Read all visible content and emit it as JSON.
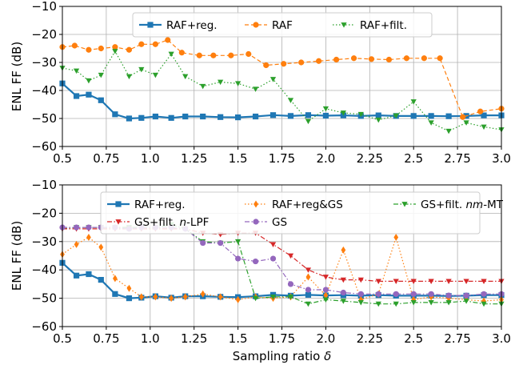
{
  "chart_data": [
    {
      "type": "line",
      "title": "",
      "xlabel": "",
      "ylabel": "ENL FF (dB)",
      "xlim": [
        0.5,
        3.0
      ],
      "ylim": [
        -60,
        -10
      ],
      "xticks": [
        "0.5",
        "0.75",
        "1.0",
        "1.25",
        "1.5",
        "1.75",
        "2.0",
        "2.25",
        "2.5",
        "2.75",
        "3.0"
      ],
      "xtick_values": [
        0.5,
        0.75,
        1.0,
        1.25,
        1.5,
        1.75,
        2.0,
        2.25,
        2.5,
        2.75,
        3.0
      ],
      "yticks": [
        "−60",
        "−50",
        "−40",
        "−30",
        "−20",
        "−10"
      ],
      "ytick_values": [
        -60,
        -50,
        -40,
        -30,
        -20,
        -10
      ],
      "grid": true,
      "legend_placement": "top-center",
      "legend_columns": 3,
      "series": [
        {
          "name": "RAF+reg.",
          "color": "#1f77b4",
          "style": "solid",
          "marker": "square",
          "x": [
            0.5,
            0.58,
            0.65,
            0.72,
            0.8,
            0.88,
            0.95,
            1.03,
            1.12,
            1.2,
            1.3,
            1.4,
            1.5,
            1.6,
            1.7,
            1.8,
            1.9,
            2.0,
            2.1,
            2.2,
            2.3,
            2.4,
            2.5,
            2.6,
            2.7,
            2.8,
            2.9,
            3.0
          ],
          "y": [
            -37.5,
            -42,
            -41.5,
            -43.5,
            -48.5,
            -50,
            -49.8,
            -49.3,
            -49.8,
            -49.3,
            -49.3,
            -49.5,
            -49.6,
            -49.3,
            -48.8,
            -49.1,
            -48.8,
            -49,
            -48.9,
            -49.1,
            -48.9,
            -49.1,
            -49.1,
            -49.1,
            -49.2,
            -49.1,
            -48.9,
            -48.9
          ]
        },
        {
          "name": "RAF",
          "color": "#ff7f0e",
          "style": "dashed",
          "marker": "circle",
          "x": [
            0.5,
            0.57,
            0.65,
            0.72,
            0.8,
            0.88,
            0.95,
            1.03,
            1.1,
            1.18,
            1.28,
            1.36,
            1.46,
            1.56,
            1.66,
            1.76,
            1.86,
            1.96,
            2.06,
            2.16,
            2.26,
            2.36,
            2.46,
            2.56,
            2.65,
            2.78,
            2.88,
            3.0
          ],
          "y": [
            -24.5,
            -24,
            -25.5,
            -25,
            -24.5,
            -25.5,
            -23.5,
            -23.5,
            -22,
            -26.5,
            -27.5,
            -27.5,
            -27.5,
            -27,
            -31,
            -30.5,
            -30,
            -29.5,
            -29,
            -28.5,
            -28.8,
            -29,
            -28.5,
            -28.5,
            -28.5,
            -49.5,
            -47.5,
            -46.5
          ]
        },
        {
          "name": "RAF+filt.",
          "color": "#2ca02c",
          "style": "dotted",
          "marker": "triangle-down",
          "x": [
            0.5,
            0.58,
            0.65,
            0.72,
            0.8,
            0.88,
            0.95,
            1.03,
            1.12,
            1.2,
            1.3,
            1.4,
            1.5,
            1.6,
            1.7,
            1.8,
            1.9,
            2.0,
            2.1,
            2.2,
            2.3,
            2.4,
            2.5,
            2.6,
            2.7,
            2.8,
            2.9,
            3.0
          ],
          "y": [
            -32,
            -33,
            -36.5,
            -34.5,
            -26,
            -35,
            -32.5,
            -34.5,
            -27,
            -35,
            -38.5,
            -37,
            -37.5,
            -39.5,
            -36,
            -43.5,
            -51,
            -46.5,
            -48,
            -48.5,
            -50.5,
            -49,
            -44,
            -51.5,
            -54.5,
            -51.5,
            -53,
            -54
          ]
        }
      ]
    },
    {
      "type": "line",
      "title": "",
      "xlabel": "Sampling ratio δ",
      "ylabel": "ENL FF (dB)",
      "xlim": [
        0.5,
        3.0
      ],
      "ylim": [
        -60,
        -10
      ],
      "xticks": [
        "0.5",
        "0.75",
        "1.0",
        "1.25",
        "1.5",
        "1.75",
        "2.0",
        "2.25",
        "2.5",
        "2.75",
        "3.0"
      ],
      "xtick_values": [
        0.5,
        0.75,
        1.0,
        1.25,
        1.5,
        1.75,
        2.0,
        2.25,
        2.5,
        2.75,
        3.0
      ],
      "yticks": [
        "−60",
        "−50",
        "−40",
        "−30",
        "−20",
        "−10"
      ],
      "ytick_values": [
        -60,
        -50,
        -40,
        -30,
        -20,
        -10
      ],
      "grid": true,
      "legend_placement": "top-center",
      "legend_columns": 3,
      "series": [
        {
          "name": "RAF+reg.",
          "color": "#1f77b4",
          "style": "solid",
          "marker": "square",
          "x": [
            0.5,
            0.58,
            0.65,
            0.72,
            0.8,
            0.88,
            0.95,
            1.03,
            1.12,
            1.2,
            1.3,
            1.4,
            1.5,
            1.6,
            1.7,
            1.8,
            1.9,
            2.0,
            2.1,
            2.2,
            2.3,
            2.4,
            2.5,
            2.6,
            2.7,
            2.8,
            2.9,
            3.0
          ],
          "y": [
            -37.5,
            -42,
            -41.5,
            -43.5,
            -48.5,
            -50,
            -49.8,
            -49.3,
            -49.8,
            -49.3,
            -49.3,
            -49.5,
            -49.6,
            -49.3,
            -48.8,
            -49.1,
            -48.8,
            -49,
            -48.9,
            -49.1,
            -48.9,
            -49.1,
            -49.1,
            -49.1,
            -49.2,
            -49.1,
            -48.9,
            -48.9
          ]
        },
        {
          "name": "RAF+reg&GS",
          "color": "#ff7f0e",
          "style": "dotted",
          "marker": "diamond",
          "x": [
            0.5,
            0.58,
            0.65,
            0.72,
            0.8,
            0.88,
            0.95,
            1.03,
            1.12,
            1.2,
            1.3,
            1.4,
            1.5,
            1.6,
            1.7,
            1.8,
            1.9,
            2.0,
            2.1,
            2.2,
            2.3,
            2.4,
            2.5,
            2.6,
            2.7,
            2.8,
            2.9,
            3.0
          ],
          "y": [
            -34.5,
            -31,
            -28.5,
            -32,
            -43,
            -46.5,
            -49.5,
            -49.5,
            -50,
            -49.5,
            -48.5,
            -49.5,
            -50.5,
            -49.5,
            -50,
            -49.5,
            -42.5,
            -49,
            -33,
            -50.5,
            -48.5,
            -28.5,
            -50.5,
            -49.5,
            -50,
            -50.5,
            -51,
            -50.5
          ]
        },
        {
          "name": "GS+filt. nm-MT",
          "color": "#2ca02c",
          "style": "dashdot",
          "marker": "triangle-down",
          "x": [
            0.5,
            0.58,
            0.65,
            0.72,
            0.8,
            0.88,
            0.95,
            1.03,
            1.12,
            1.2,
            1.3,
            1.4,
            1.5,
            1.6,
            1.7,
            1.8,
            1.9,
            2.0,
            2.1,
            2.2,
            2.3,
            2.4,
            2.5,
            2.6,
            2.7,
            2.8,
            2.9,
            3.0
          ],
          "y": [
            -25.5,
            -25,
            -25,
            -25,
            -25,
            -25,
            -25,
            -25,
            -24,
            -25.5,
            -30,
            -30.5,
            -30,
            -50,
            -49.5,
            -49.5,
            -52,
            -50.5,
            -51,
            -51.5,
            -52,
            -52,
            -51.5,
            -51.5,
            -51.5,
            -51,
            -52,
            -52
          ]
        },
        {
          "name": "GS+filt. n-LPF",
          "color": "#d62728",
          "style": "dashdot",
          "marker": "triangle-down",
          "x": [
            0.5,
            0.58,
            0.65,
            0.72,
            0.8,
            0.88,
            0.95,
            1.03,
            1.12,
            1.2,
            1.3,
            1.4,
            1.5,
            1.6,
            1.7,
            1.8,
            1.9,
            2.0,
            2.1,
            2.2,
            2.3,
            2.4,
            2.5,
            2.6,
            2.7,
            2.8,
            2.9,
            3.0
          ],
          "y": [
            -25.5,
            -25.5,
            -25.5,
            -25.5,
            -25.5,
            -25.5,
            -25.5,
            -25.5,
            -25.5,
            -25.5,
            -27,
            -27.5,
            -27,
            -27,
            -31,
            -35,
            -40,
            -42.5,
            -43.5,
            -43.5,
            -44,
            -44,
            -44,
            -44,
            -44,
            -44,
            -44,
            -44
          ]
        },
        {
          "name": "GS",
          "color": "#9467bd",
          "style": "dashdot",
          "marker": "circle",
          "x": [
            0.5,
            0.58,
            0.65,
            0.72,
            0.8,
            0.88,
            0.95,
            1.03,
            1.12,
            1.2,
            1.3,
            1.4,
            1.5,
            1.6,
            1.7,
            1.8,
            1.9,
            2.0,
            2.1,
            2.2,
            2.3,
            2.4,
            2.5,
            2.6,
            2.7,
            2.8,
            2.9,
            3.0
          ],
          "y": [
            -25,
            -25,
            -25,
            -25,
            -25,
            -25.5,
            -25,
            -25,
            -25,
            -25.5,
            -30.5,
            -30.5,
            -36,
            -37,
            -36,
            -45,
            -47,
            -47,
            -48,
            -48.5,
            -48.5,
            -48.5,
            -48.5,
            -48.5,
            -49,
            -49,
            -48.5,
            -48.5
          ]
        }
      ]
    }
  ]
}
